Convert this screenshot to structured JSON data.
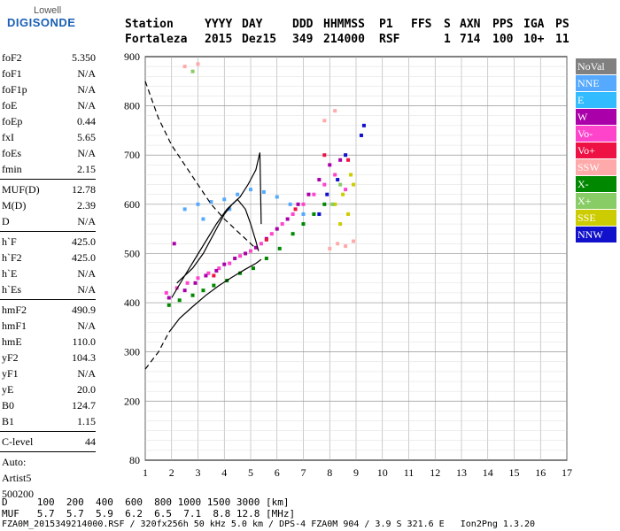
{
  "logo": {
    "line1": "Lowell",
    "line2": "DIGISONDE"
  },
  "header": {
    "labels": [
      "Station",
      "YYYY",
      "DAY",
      "DDD",
      "HHMMSS",
      "P1",
      "FFS",
      "S",
      "AXN",
      "PPS",
      "IGA",
      "PS"
    ],
    "values": [
      "Fortaleza",
      "2015",
      "Dez15",
      "349",
      "214000",
      "RSF",
      "",
      "1",
      "714",
      "100",
      "10+",
      "11"
    ]
  },
  "params": {
    "group1": [
      {
        "label": "foF2",
        "value": "5.350"
      },
      {
        "label": "foF1",
        "value": "N/A"
      },
      {
        "label": "foF1p",
        "value": "N/A"
      },
      {
        "label": "foE",
        "value": "N/A"
      },
      {
        "label": "foEp",
        "value": "0.44"
      },
      {
        "label": "fxI",
        "value": "5.65"
      },
      {
        "label": "foEs",
        "value": "N/A"
      },
      {
        "label": "fmin",
        "value": "2.15"
      }
    ],
    "group2": [
      {
        "label": "MUF(D)",
        "value": "12.78"
      },
      {
        "label": "M(D)",
        "value": "2.39"
      },
      {
        "label": "D",
        "value": "N/A"
      }
    ],
    "group3": [
      {
        "label": "h`F",
        "value": "425.0"
      },
      {
        "label": "h`F2",
        "value": "425.0"
      },
      {
        "label": "h`E",
        "value": "N/A"
      },
      {
        "label": "h`Es",
        "value": "N/A"
      }
    ],
    "group4": [
      {
        "label": "hmF2",
        "value": "490.9"
      },
      {
        "label": "hmF1",
        "value": "N/A"
      },
      {
        "label": "hmE",
        "value": "110.0"
      },
      {
        "label": "yF2",
        "value": "104.3"
      },
      {
        "label": "yF1",
        "value": "N/A"
      },
      {
        "label": "yE",
        "value": "20.0"
      },
      {
        "label": "B0",
        "value": "124.7"
      },
      {
        "label": "B1",
        "value": "1.15"
      }
    ],
    "group5": [
      {
        "label": "C-level",
        "value": "44"
      }
    ],
    "auto": [
      "Auto:",
      "Artist5",
      "500200"
    ]
  },
  "legend": [
    {
      "label": "NoVal",
      "color": "#808080"
    },
    {
      "label": "NNE",
      "color": "#55aaff"
    },
    {
      "label": "E",
      "color": "#33bbff"
    },
    {
      "label": "W",
      "color": "#aa00aa"
    },
    {
      "label": "Vo-",
      "color": "#ff44cc"
    },
    {
      "label": "Vo+",
      "color": "#ee1144"
    },
    {
      "label": "SSW",
      "color": "#ffaaaa"
    },
    {
      "label": "X-",
      "color": "#008800"
    },
    {
      "label": "X+",
      "color": "#88cc66"
    },
    {
      "label": "SSE",
      "color": "#cccc00"
    },
    {
      "label": "NNW",
      "color": "#1111cc"
    }
  ],
  "chart_data": {
    "type": "scatter",
    "xlim": [
      1,
      17
    ],
    "ylim": [
      80,
      900
    ],
    "x_ticks": [
      1,
      2,
      3,
      4,
      5,
      6,
      7,
      8,
      9,
      10,
      11,
      12,
      13,
      14,
      15,
      16,
      17
    ],
    "y_ticks": [
      80,
      200,
      300,
      400,
      500,
      600,
      700,
      800,
      900
    ],
    "grid": true,
    "legend_position": "right",
    "series": [
      {
        "name": "X-",
        "color": "#008800",
        "points": [
          [
            1.9,
            395
          ],
          [
            2.3,
            405
          ],
          [
            2.8,
            415
          ],
          [
            3.2,
            425
          ],
          [
            3.6,
            435
          ],
          [
            4.1,
            445
          ],
          [
            4.6,
            460
          ],
          [
            5.1,
            470
          ],
          [
            5.6,
            490
          ],
          [
            6.1,
            510
          ],
          [
            6.6,
            540
          ],
          [
            7.0,
            560
          ],
          [
            7.4,
            580
          ],
          [
            7.8,
            600
          ]
        ]
      },
      {
        "name": "Vo-",
        "color": "#ff44cc",
        "points": [
          [
            1.8,
            420
          ],
          [
            2.2,
            430
          ],
          [
            2.6,
            440
          ],
          [
            3.0,
            450
          ],
          [
            3.4,
            460
          ],
          [
            3.8,
            470
          ],
          [
            4.2,
            480
          ],
          [
            4.6,
            495
          ],
          [
            5.0,
            505
          ],
          [
            5.4,
            520
          ],
          [
            5.8,
            540
          ],
          [
            6.2,
            560
          ],
          [
            6.6,
            580
          ],
          [
            7.0,
            600
          ],
          [
            7.4,
            620
          ],
          [
            7.8,
            640
          ],
          [
            8.2,
            660
          ],
          [
            8.6,
            630
          ]
        ]
      },
      {
        "name": "W",
        "color": "#aa00aa",
        "points": [
          [
            1.9,
            410
          ],
          [
            2.1,
            520
          ],
          [
            2.5,
            425
          ],
          [
            2.9,
            440
          ],
          [
            3.3,
            455
          ],
          [
            3.7,
            465
          ],
          [
            4.0,
            478
          ],
          [
            4.4,
            490
          ],
          [
            4.8,
            500
          ],
          [
            5.2,
            512
          ],
          [
            5.6,
            530
          ],
          [
            6.0,
            550
          ],
          [
            6.4,
            570
          ],
          [
            6.8,
            600
          ],
          [
            7.2,
            620
          ],
          [
            7.6,
            650
          ],
          [
            8.0,
            680
          ],
          [
            8.4,
            690
          ]
        ]
      },
      {
        "name": "NNE",
        "color": "#55aaff",
        "points": [
          [
            2.5,
            590
          ],
          [
            3.0,
            600
          ],
          [
            3.5,
            605
          ],
          [
            4.0,
            610
          ],
          [
            4.5,
            620
          ],
          [
            5.0,
            630
          ],
          [
            5.5,
            625
          ],
          [
            6.0,
            615
          ],
          [
            6.5,
            600
          ],
          [
            7.0,
            580
          ],
          [
            3.2,
            570
          ],
          [
            4.2,
            590
          ]
        ]
      },
      {
        "name": "SSE",
        "color": "#cccc00",
        "points": [
          [
            8.2,
            600
          ],
          [
            8.5,
            620
          ],
          [
            8.7,
            580
          ],
          [
            8.9,
            640
          ],
          [
            8.4,
            560
          ],
          [
            8.8,
            660
          ]
        ]
      },
      {
        "name": "NNW",
        "color": "#1111cc",
        "points": [
          [
            7.9,
            620
          ],
          [
            8.3,
            650
          ],
          [
            8.6,
            700
          ],
          [
            9.2,
            740
          ],
          [
            9.3,
            760
          ],
          [
            7.6,
            580
          ]
        ]
      },
      {
        "name": "SSW",
        "color": "#ffaaaa",
        "points": [
          [
            8.0,
            510
          ],
          [
            8.3,
            520
          ],
          [
            8.6,
            515
          ],
          [
            8.9,
            525
          ],
          [
            7.8,
            770
          ],
          [
            8.2,
            790
          ],
          [
            2.5,
            880
          ],
          [
            3.0,
            885
          ]
        ]
      },
      {
        "name": "X+",
        "color": "#88cc66",
        "points": [
          [
            8.4,
            640
          ],
          [
            8.1,
            600
          ],
          [
            2.8,
            870
          ]
        ]
      },
      {
        "name": "Vo+",
        "color": "#ee1144",
        "points": [
          [
            3.6,
            455
          ],
          [
            5.6,
            528
          ],
          [
            6.7,
            590
          ],
          [
            7.8,
            700
          ],
          [
            8.7,
            690
          ]
        ]
      }
    ],
    "lines": [
      {
        "style": "dashed",
        "points": [
          [
            1.0,
            850
          ],
          [
            1.5,
            775
          ],
          [
            2.0,
            720
          ],
          [
            2.5,
            680
          ],
          [
            3.0,
            640
          ],
          [
            3.5,
            600
          ],
          [
            4.0,
            570
          ],
          [
            4.5,
            545
          ],
          [
            5.0,
            520
          ],
          [
            5.2,
            510
          ]
        ]
      },
      {
        "style": "dashed",
        "points": [
          [
            1.0,
            265
          ],
          [
            1.5,
            300
          ],
          [
            1.9,
            340
          ]
        ]
      },
      {
        "style": "solid",
        "points": [
          [
            1.9,
            340
          ],
          [
            2.3,
            368
          ],
          [
            2.8,
            392
          ],
          [
            3.3,
            415
          ],
          [
            3.8,
            435
          ],
          [
            4.3,
            452
          ],
          [
            4.8,
            468
          ],
          [
            5.2,
            480
          ],
          [
            5.4,
            488
          ]
        ]
      },
      {
        "style": "solid",
        "points": [
          [
            2.0,
            410
          ],
          [
            2.5,
            455
          ],
          [
            2.9,
            490
          ],
          [
            3.3,
            525
          ],
          [
            3.7,
            560
          ],
          [
            4.1,
            590
          ],
          [
            4.5,
            610
          ],
          [
            4.8,
            590
          ],
          [
            5.0,
            560
          ],
          [
            5.2,
            525
          ],
          [
            5.3,
            505
          ]
        ]
      },
      {
        "style": "solid",
        "points": [
          [
            2.2,
            440
          ],
          [
            2.8,
            470
          ],
          [
            3.2,
            500
          ],
          [
            3.6,
            540
          ],
          [
            4.0,
            580
          ],
          [
            4.3,
            600
          ],
          [
            4.6,
            615
          ],
          [
            4.9,
            640
          ],
          [
            5.2,
            670
          ],
          [
            5.35,
            705
          ],
          [
            5.4,
            560
          ]
        ]
      }
    ]
  },
  "footer": {
    "d_row": "D     100  200  400  600  800 1000 1500 3000 [km]",
    "muf_row": "MUF   5.7  5.7  5.9  6.2  6.5  7.1  8.8 12.8 [MHz]",
    "info": "FZA0M_2015349214000.RSF / 320fx256h 50 kHz 5.0 km / DPS-4 FZA0M 904 / 3.9 S 321.6 E   Ion2Png 1.3.20"
  }
}
